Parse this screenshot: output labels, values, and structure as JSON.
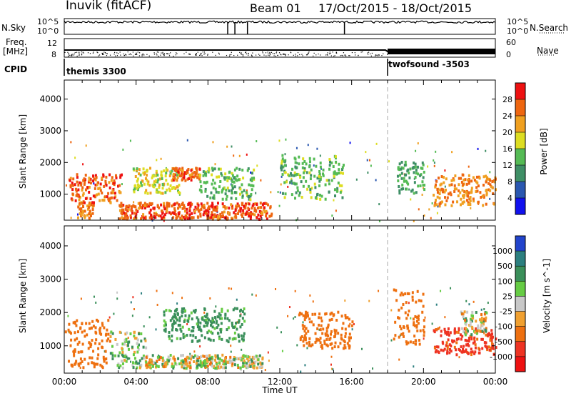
{
  "header": {
    "site": "Inuvik (fitACF)",
    "beam": "Beam 01",
    "dates": "17/Oct/2015 - 18/Oct/2015"
  },
  "strips": {
    "nsky_label": "N.Sky",
    "nsky_ticks": [
      "10^5",
      "10^0"
    ],
    "nsearch_label": "N.Search",
    "nsearch_ticks": [
      "10^5",
      "10^0"
    ],
    "freq_label_1": "Freq.",
    "freq_label_2": "[MHz]",
    "freq_ticks": [
      "8",
      "12"
    ],
    "nave_label": "Nave",
    "nave_ticks": [
      "60",
      "0"
    ],
    "cpid_label": "CPID",
    "cpid_modes": [
      "themis 3300",
      "twofsound -3503"
    ]
  },
  "chart_data": [
    {
      "type": "heatmap",
      "title": "",
      "xlabel": "",
      "ylabel": "Slant Range [km]",
      "xlim": [
        "00:00",
        "24:00"
      ],
      "ylim": [
        180,
        4600
      ],
      "yticks": [
        "1000",
        "2000",
        "3000",
        "4000"
      ],
      "colorbar": {
        "label": "Power [dB]",
        "ticks": [
          "4",
          "8",
          "12",
          "16",
          "20",
          "24",
          "28"
        ],
        "colors": [
          "#1111ee",
          "#2a57b0",
          "#3f8f66",
          "#55bb55",
          "#dddd22",
          "#f0a020",
          "#ee6610",
          "#ee1111"
        ]
      },
      "regions": [
        {
          "t_start": 0.7,
          "t_end": 1.6,
          "range": [
            200,
            700
          ],
          "value": 24
        },
        {
          "t_start": 0.2,
          "t_end": 3.2,
          "range": [
            700,
            1600
          ],
          "value": 26
        },
        {
          "t_start": 3.0,
          "t_end": 11.5,
          "range": [
            180,
            700
          ],
          "value": 27
        },
        {
          "t_start": 3.8,
          "t_end": 6.5,
          "range": [
            1000,
            1800
          ],
          "value": 18
        },
        {
          "t_start": 6.0,
          "t_end": 7.5,
          "range": [
            1400,
            1800
          ],
          "value": 26
        },
        {
          "t_start": 7.5,
          "t_end": 10.5,
          "range": [
            800,
            1800
          ],
          "value": 14
        },
        {
          "t_start": 12.0,
          "t_end": 15.5,
          "range": [
            800,
            2200
          ],
          "value": 14
        },
        {
          "t_start": 18.5,
          "t_end": 20.0,
          "range": [
            1000,
            2000
          ],
          "value": 12
        },
        {
          "t_start": 20.5,
          "t_end": 24.0,
          "range": [
            600,
            1600
          ],
          "value": 24
        }
      ]
    },
    {
      "type": "heatmap",
      "title": "",
      "xlabel": "Time UT",
      "ylabel": "Slant Range [km]",
      "xlim": [
        "00:00",
        "24:00"
      ],
      "ylim": [
        180,
        4600
      ],
      "xticks": [
        "00:00",
        "04:00",
        "08:00",
        "12:00",
        "16:00",
        "20:00",
        "00:00"
      ],
      "yticks": [
        "1000",
        "2000",
        "3000",
        "4000"
      ],
      "colorbar": {
        "label": "Velocity [m s^-1]",
        "ticks": [
          "1000",
          "500",
          "100",
          "25",
          "-25",
          "-100",
          "-500",
          "-1000"
        ],
        "colors": [
          "#2244cc",
          "#2c7f7f",
          "#3a8f5a",
          "#66cc44",
          "#c8c8c8",
          "#f0a030",
          "#ee7010",
          "#ee3322",
          "#ee1111"
        ]
      },
      "regions": [
        {
          "t_start": 0.0,
          "t_end": 2.5,
          "range": [
            300,
            1800
          ],
          "value": -300
        },
        {
          "t_start": 2.5,
          "t_end": 4.5,
          "range": [
            300,
            1400
          ],
          "value": 50
        },
        {
          "t_start": 4.5,
          "t_end": 11.0,
          "range": [
            300,
            700
          ],
          "value": 0
        },
        {
          "t_start": 5.5,
          "t_end": 10.0,
          "range": [
            1100,
            2100
          ],
          "value": 200
        },
        {
          "t_start": 13.0,
          "t_end": 16.0,
          "range": [
            900,
            2000
          ],
          "value": -300
        },
        {
          "t_start": 18.3,
          "t_end": 20.0,
          "range": [
            1000,
            2700
          ],
          "value": -300
        },
        {
          "t_start": 20.5,
          "t_end": 24.0,
          "range": [
            700,
            1500
          ],
          "value": -600
        },
        {
          "t_start": 22.0,
          "t_end": 23.5,
          "range": [
            1300,
            2000
          ],
          "value": 0
        }
      ]
    }
  ],
  "strip_data": {
    "nsky_level": 0.78,
    "nsearch_level": 0.62,
    "nave_level": 0.7,
    "mode_change_hour": 18.0,
    "mode_change_hour_label": "18:00"
  }
}
